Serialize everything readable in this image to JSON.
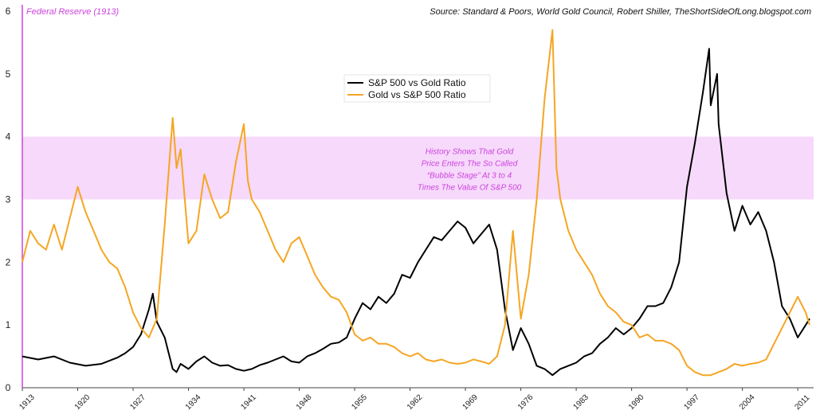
{
  "chart_data": {
    "type": "line",
    "title": "",
    "xlabel": "",
    "ylabel": "",
    "xlim": [
      1913,
      2013
    ],
    "ylim": [
      0,
      6
    ],
    "yticks": [
      0,
      1,
      2,
      3,
      4,
      5,
      6
    ],
    "xticks": [
      "1913",
      "1920",
      "1927",
      "1934",
      "1941",
      "1948",
      "1955",
      "1962",
      "1969",
      "1976",
      "1983",
      "1990",
      "1997",
      "2004",
      "2011"
    ],
    "source": "Source: Standard & Poors, World Gold Council, Robert Shiller, TheShortSideOfLong.blogspot.com",
    "vline": {
      "x": 1913,
      "label": "Federal Reserve (1913)",
      "color": "#cc44dd"
    },
    "band": {
      "y0": 3,
      "y1": 4,
      "color": "#f6d9fb",
      "text": [
        "History  Shows  That  Gold",
        "Price  Enters  The  So  Called",
        "“Bubble  Stage”  At  3  to  4",
        "Times The Value Of S&P 500"
      ],
      "text_color": "#cc44dd"
    },
    "legend": {
      "position": "top-center"
    },
    "series": [
      {
        "name": "S&P 500 vs Gold Ratio",
        "color": "#000000",
        "x": [
          1913,
          1915,
          1917,
          1919,
          1921,
          1923,
          1925,
          1926,
          1927,
          1928,
          1929,
          1929.5,
          1930,
          1931,
          1932,
          1932.5,
          1933,
          1934,
          1935,
          1936,
          1937,
          1938,
          1939,
          1940,
          1941,
          1942,
          1943,
          1944,
          1945,
          1946,
          1947,
          1948,
          1949,
          1950,
          1951,
          1952,
          1953,
          1954,
          1955,
          1956,
          1957,
          1958,
          1959,
          1960,
          1961,
          1962,
          1963,
          1964,
          1965,
          1966,
          1967,
          1968,
          1969,
          1970,
          1971,
          1972,
          1973,
          1974,
          1975,
          1976,
          1977,
          1978,
          1979,
          1980,
          1981,
          1982,
          1983,
          1984,
          1985,
          1986,
          1987,
          1988,
          1989,
          1990,
          1991,
          1992,
          1993,
          1994,
          1995,
          1996,
          1997,
          1998,
          1999,
          1999.8,
          2000,
          2000.8,
          2001,
          2002,
          2003,
          2004,
          2005,
          2006,
          2007,
          2008,
          2009,
          2010,
          2011,
          2012,
          2012.5
        ],
        "y": [
          0.5,
          0.45,
          0.5,
          0.4,
          0.35,
          0.38,
          0.48,
          0.55,
          0.65,
          0.85,
          1.25,
          1.5,
          1.05,
          0.8,
          0.3,
          0.25,
          0.38,
          0.3,
          0.42,
          0.5,
          0.4,
          0.35,
          0.36,
          0.3,
          0.27,
          0.3,
          0.36,
          0.4,
          0.45,
          0.5,
          0.42,
          0.4,
          0.5,
          0.55,
          0.62,
          0.7,
          0.72,
          0.8,
          1.1,
          1.35,
          1.25,
          1.45,
          1.35,
          1.5,
          1.8,
          1.75,
          2.0,
          2.2,
          2.4,
          2.35,
          2.5,
          2.65,
          2.55,
          2.3,
          2.45,
          2.6,
          2.2,
          1.25,
          0.6,
          0.95,
          0.7,
          0.35,
          0.3,
          0.2,
          0.3,
          0.35,
          0.4,
          0.5,
          0.55,
          0.7,
          0.8,
          0.95,
          0.85,
          0.95,
          1.1,
          1.3,
          1.3,
          1.35,
          1.6,
          2.0,
          3.2,
          3.9,
          4.7,
          5.4,
          4.5,
          5.0,
          4.2,
          3.1,
          2.5,
          2.9,
          2.6,
          2.8,
          2.5,
          2.0,
          1.3,
          1.1,
          0.8,
          1.0,
          1.1
        ]
      },
      {
        "name": "Gold vs S&P 500 Ratio",
        "color": "#f5a623",
        "x": [
          1913,
          1914,
          1915,
          1916,
          1917,
          1918,
          1919,
          1920,
          1921,
          1922,
          1923,
          1924,
          1925,
          1926,
          1927,
          1928,
          1929,
          1930,
          1931,
          1932,
          1932.5,
          1933,
          1934,
          1935,
          1936,
          1937,
          1938,
          1939,
          1940,
          1941,
          1941.5,
          1942,
          1943,
          1944,
          1945,
          1946,
          1947,
          1948,
          1949,
          1950,
          1951,
          1952,
          1953,
          1954,
          1955,
          1956,
          1957,
          1958,
          1959,
          1960,
          1961,
          1962,
          1963,
          1964,
          1965,
          1966,
          1967,
          1968,
          1969,
          1970,
          1971,
          1972,
          1973,
          1974,
          1975,
          1976,
          1977,
          1978,
          1979,
          1980,
          1980.5,
          1981,
          1982,
          1983,
          1984,
          1985,
          1986,
          1987,
          1988,
          1989,
          1990,
          1991,
          1992,
          1993,
          1994,
          1995,
          1996,
          1997,
          1998,
          1999,
          2000,
          2001,
          2002,
          2003,
          2004,
          2005,
          2006,
          2007,
          2008,
          2009,
          2010,
          2011,
          2012,
          2012.5
        ],
        "y": [
          2.0,
          2.5,
          2.3,
          2.2,
          2.6,
          2.2,
          2.7,
          3.2,
          2.8,
          2.5,
          2.2,
          2.0,
          1.9,
          1.6,
          1.2,
          0.95,
          0.8,
          1.1,
          2.6,
          4.3,
          3.5,
          3.8,
          2.3,
          2.5,
          3.4,
          3.0,
          2.7,
          2.8,
          3.6,
          4.2,
          3.3,
          3.0,
          2.8,
          2.5,
          2.2,
          2.0,
          2.3,
          2.4,
          2.1,
          1.8,
          1.6,
          1.45,
          1.4,
          1.2,
          0.85,
          0.75,
          0.8,
          0.7,
          0.7,
          0.65,
          0.55,
          0.5,
          0.55,
          0.45,
          0.42,
          0.45,
          0.4,
          0.38,
          0.4,
          0.45,
          0.42,
          0.38,
          0.5,
          1.0,
          2.5,
          1.1,
          1.8,
          3.0,
          4.6,
          5.7,
          3.5,
          3.0,
          2.5,
          2.2,
          2.0,
          1.8,
          1.5,
          1.3,
          1.2,
          1.05,
          1.0,
          0.8,
          0.85,
          0.75,
          0.75,
          0.7,
          0.6,
          0.35,
          0.25,
          0.2,
          0.2,
          0.25,
          0.3,
          0.38,
          0.35,
          0.38,
          0.4,
          0.45,
          0.7,
          0.95,
          1.2,
          1.45,
          1.2,
          1.0
        ]
      }
    ]
  }
}
